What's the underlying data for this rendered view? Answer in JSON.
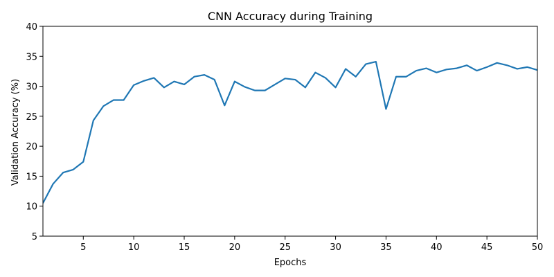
{
  "chart_data": {
    "type": "line",
    "title": "CNN Accuracy during Training",
    "xlabel": "Epochs",
    "ylabel": "Validation Accuracy (%)",
    "xlim": [
      1,
      50
    ],
    "ylim": [
      5,
      40
    ],
    "xticks": [
      5,
      10,
      15,
      20,
      25,
      30,
      35,
      40,
      45,
      50
    ],
    "yticks": [
      5,
      10,
      15,
      20,
      25,
      30,
      35,
      40
    ],
    "grid": false,
    "line_color": "#1f77b4",
    "series": [
      {
        "x": [
          1,
          2,
          3,
          4,
          5,
          6,
          7,
          8,
          9,
          10,
          11,
          12,
          13,
          14,
          15,
          16,
          17,
          18,
          19,
          20,
          21,
          22,
          23,
          24,
          25,
          26,
          27,
          28,
          29,
          30,
          31,
          32,
          33,
          34,
          35,
          36,
          37,
          38,
          39,
          40,
          41,
          42,
          43,
          44,
          45,
          46,
          47,
          48,
          49,
          50
        ],
        "values": [
          10.5,
          13.7,
          15.6,
          16.1,
          17.4,
          24.3,
          26.7,
          27.7,
          27.7,
          30.2,
          30.9,
          31.4,
          29.8,
          30.8,
          30.3,
          31.6,
          31.9,
          31.1,
          26.8,
          30.8,
          29.9,
          29.3,
          29.3,
          30.3,
          31.3,
          31.1,
          29.8,
          32.3,
          31.4,
          29.8,
          32.9,
          31.6,
          33.7,
          34.1,
          26.2,
          31.6,
          31.6,
          32.6,
          33.0,
          32.3,
          32.8,
          33.0,
          33.5,
          32.6,
          33.2,
          33.9,
          33.5,
          32.9,
          33.2,
          32.7
        ]
      }
    ]
  }
}
